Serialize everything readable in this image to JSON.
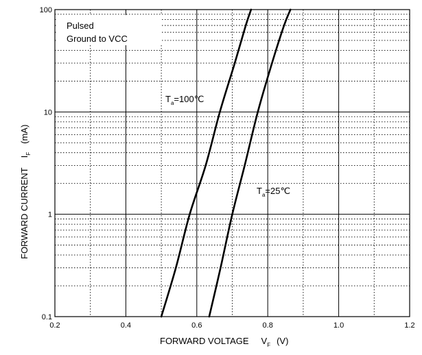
{
  "chart_data": {
    "type": "line",
    "notes": [
      "Pulsed",
      "Ground to VCC"
    ],
    "xlabel": {
      "text": "FORWARD VOLTAGE",
      "symbol": "V",
      "subscript": "F",
      "unit": "(V)"
    },
    "ylabel": {
      "text": "FORWARD CURRENT",
      "symbol": "I",
      "subscript": "F",
      "unit": "(mA)"
    },
    "xlim": [
      0.2,
      1.2
    ],
    "ylim": [
      0.1,
      100
    ],
    "y_scale": "log",
    "grid": true,
    "x_ticks": [
      "0.2",
      "0.4",
      "0.6",
      "0.8",
      "1.0",
      "1.2"
    ],
    "y_ticks": [
      "0.1",
      "1",
      "10",
      "100"
    ],
    "series": [
      {
        "name": "T",
        "name_sub": "a",
        "name_suffix": "=100℃",
        "points": [
          [
            0.5,
            0.1
          ],
          [
            0.541,
            0.3
          ],
          [
            0.58,
            1
          ],
          [
            0.625,
            3
          ],
          [
            0.665,
            10
          ],
          [
            0.707,
            30
          ],
          [
            0.738,
            70
          ],
          [
            0.753,
            100
          ]
        ]
      },
      {
        "name": "T",
        "name_sub": "a",
        "name_suffix": "=25℃",
        "points": [
          [
            0.635,
            0.1
          ],
          [
            0.667,
            0.3
          ],
          [
            0.7,
            1
          ],
          [
            0.735,
            3
          ],
          [
            0.772,
            10
          ],
          [
            0.812,
            30
          ],
          [
            0.846,
            70
          ],
          [
            0.864,
            100
          ]
        ]
      }
    ]
  }
}
